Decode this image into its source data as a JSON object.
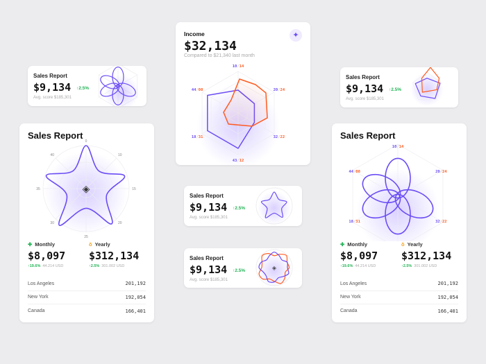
{
  "colors": {
    "accent": "#6b4cf5",
    "secondary": "#ff5a1f",
    "positive": "#22b455",
    "background": "#ececef"
  },
  "small_cards": [
    {
      "title": "Sales Report",
      "value": "$9,134",
      "change": "↑2.5%",
      "sub": "Avg. score $185,301",
      "chart": "flower"
    },
    {
      "title": "Sales Report",
      "value": "$9,134",
      "change": "↑2.5%",
      "sub": "Avg. score $185,301",
      "chart": "star"
    },
    {
      "title": "Sales Report",
      "value": "$9,134",
      "change": "↑2.5%",
      "sub": "Avg. score $185,301",
      "chart": "wave"
    },
    {
      "title": "Sales Report",
      "value": "$9,134",
      "change": "↑2.5%",
      "sub": "Avg. score $185,301",
      "chart": "pentagon"
    }
  ],
  "income": {
    "title": "Income",
    "value": "$32,134",
    "compare": "Compared to $21,340 last month",
    "icon": "sparkle-icon",
    "axes": [
      [
        "10",
        "14"
      ],
      [
        "20",
        "24"
      ],
      [
        "32",
        "22"
      ],
      [
        "43",
        "12"
      ],
      [
        "18",
        "31"
      ],
      [
        "44",
        "08"
      ]
    ]
  },
  "big_cards": [
    {
      "title": "Sales Report",
      "polar_labels": [
        "0",
        "10",
        "15",
        "20",
        "25",
        "30",
        "35",
        "40"
      ],
      "monthly": {
        "label": "Monthly",
        "value": "$8,097",
        "change": "↑19.6%",
        "usd": "44.214 USD"
      },
      "yearly": {
        "label": "Yearly",
        "value": "$312,134",
        "change": "↑2.5%",
        "usd": "301.002 USD"
      },
      "rows": [
        {
          "name": "Los Angeles",
          "value": "201,192"
        },
        {
          "name": "New York",
          "value": "192,054"
        },
        {
          "name": "Canada",
          "value": "166,401"
        }
      ]
    },
    {
      "title": "Sales Report",
      "axes": [
        [
          "10",
          "14"
        ],
        [
          "20",
          "24"
        ],
        [
          "32",
          "22"
        ],
        [
          "43",
          "12"
        ],
        [
          "18",
          "31"
        ],
        [
          "44",
          "08"
        ]
      ],
      "monthly": {
        "label": "Monthly",
        "value": "$8,097",
        "change": "↑19.6%",
        "usd": "44.214 USD"
      },
      "yearly": {
        "label": "Yearly",
        "value": "$312,134",
        "change": "↑2.5%",
        "usd": "301.002 USD"
      },
      "rows": [
        {
          "name": "Los Angeles",
          "value": "201,192"
        },
        {
          "name": "New York",
          "value": "192,054"
        },
        {
          "name": "Canada",
          "value": "166,401"
        }
      ]
    }
  ]
}
